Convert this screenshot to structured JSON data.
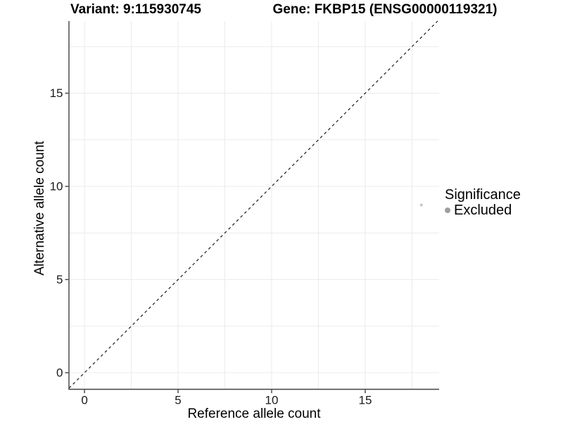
{
  "chart_data": {
    "type": "scatter",
    "title_variant": "Variant: 9:115930745",
    "title_gene": "Gene: FKBP15 (ENSG00000119321)",
    "xlabel": "Reference allele count",
    "ylabel": "Alternative allele count",
    "xlim": [
      -0.83,
      18.95
    ],
    "ylim": [
      -0.89,
      18.87
    ],
    "x_ticks": [
      0,
      5,
      10,
      15
    ],
    "y_ticks": [
      0,
      5,
      10,
      15
    ],
    "grid_step": 2.5,
    "grid_min": 0,
    "grid_max": 17.5,
    "grid_on": true,
    "points": [
      {
        "x": 18,
        "y": 9,
        "significance": "Excluded"
      }
    ],
    "identity_line": {
      "style": "dashed",
      "equation": "y = x",
      "color": "#1a1a1a"
    },
    "legend": {
      "position": "right",
      "title": "Significance",
      "items": [
        {
          "label": "Excluded",
          "color": "#9e9e9e"
        }
      ]
    },
    "colors": {
      "point": "#c6c6c6",
      "grid": "#ebebeb",
      "axis": "#404040",
      "tick_label": "#1a1a1a",
      "background": "#ffffff"
    },
    "tick_label_font_px": 17
  }
}
